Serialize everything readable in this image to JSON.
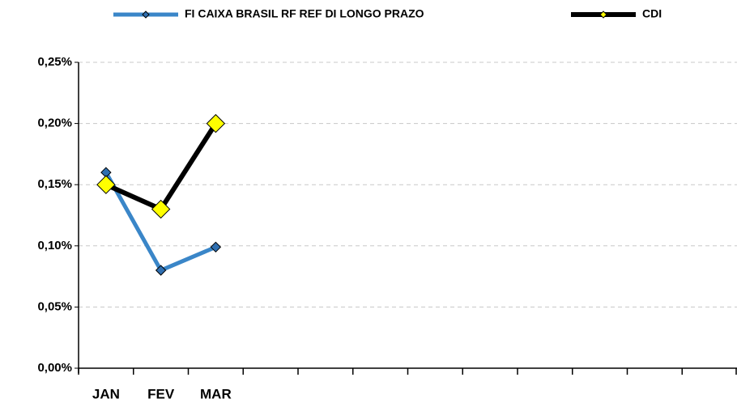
{
  "chart_data": {
    "type": "line",
    "categories": [
      "JAN",
      "FEV",
      "MAR",
      null,
      null,
      null,
      null,
      null,
      null,
      null,
      null,
      null
    ],
    "series": [
      {
        "name": "FI CAIXA BRASIL RF REF DI LONGO PRAZO",
        "color": "#3a86c8",
        "marker_color": "#2f6fb0",
        "values": [
          0.16,
          0.08,
          0.099,
          null,
          null,
          null,
          null,
          null,
          null,
          null,
          null,
          null
        ]
      },
      {
        "name": "CDI",
        "color": "#000000",
        "marker_color": "#ffff00",
        "values": [
          0.15,
          0.13,
          0.2,
          null,
          null,
          null,
          null,
          null,
          null,
          null,
          null,
          null
        ]
      }
    ],
    "ylim": [
      0,
      0.25
    ],
    "yticks": [
      {
        "value": 0,
        "label": "0,00%"
      },
      {
        "value": 0.05,
        "label": "0,05%"
      },
      {
        "value": 0.1,
        "label": "0,10%"
      },
      {
        "value": 0.15,
        "label": "0,15%"
      },
      {
        "value": 0.2,
        "label": "0,20%"
      },
      {
        "value": 0.25,
        "label": "0,25%"
      }
    ],
    "grid": true,
    "legend": "top"
  }
}
